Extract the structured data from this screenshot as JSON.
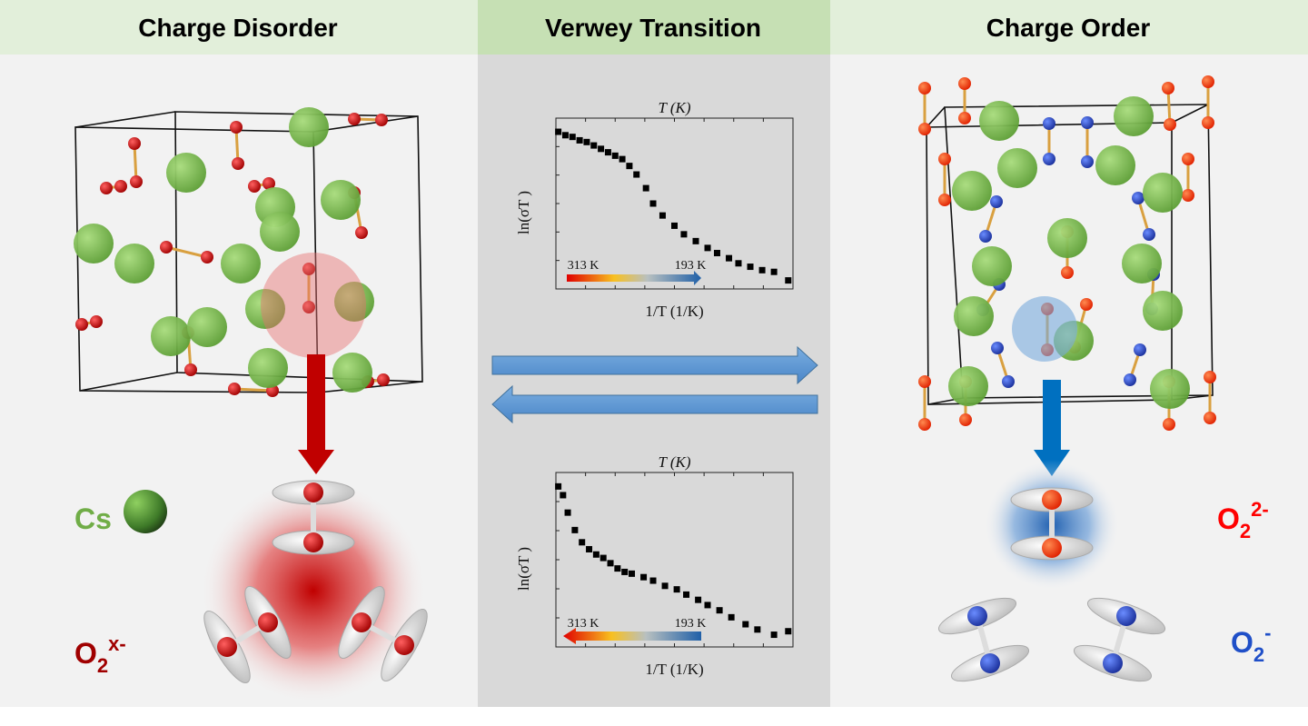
{
  "panels": [
    {
      "title": "Charge Disorder"
    },
    {
      "title": "Verwey Transition"
    },
    {
      "title": "Charge Order"
    }
  ],
  "legend": {
    "cs": "Cs",
    "o2_disorder": {
      "base": "O",
      "sub": "2",
      "sup": "x-"
    },
    "o2_peroxide": {
      "base": "O",
      "sub": "2",
      "sup": "2-"
    },
    "o2_superoxide": {
      "base": "O",
      "sub": "2",
      "sup": "-"
    }
  },
  "charts": [
    {
      "type": "scatter",
      "top_label": "T  (K)",
      "y_label": "ln(σT )",
      "x_label": "1/T  (1/K)",
      "colorbar": {
        "start": "313 K",
        "end": "193 K",
        "direction": "right"
      },
      "xlim": [
        0,
        1
      ],
      "ylim": [
        0,
        1
      ],
      "x": [
        0.01,
        0.04,
        0.07,
        0.1,
        0.13,
        0.16,
        0.19,
        0.22,
        0.25,
        0.28,
        0.31,
        0.34,
        0.38,
        0.41,
        0.45,
        0.5,
        0.54,
        0.59,
        0.64,
        0.68,
        0.73,
        0.77,
        0.82,
        0.87,
        0.92,
        0.98
      ],
      "y": [
        0.92,
        0.9,
        0.89,
        0.87,
        0.86,
        0.84,
        0.82,
        0.8,
        0.78,
        0.76,
        0.72,
        0.67,
        0.59,
        0.5,
        0.43,
        0.37,
        0.32,
        0.28,
        0.24,
        0.21,
        0.18,
        0.15,
        0.13,
        0.11,
        0.1,
        0.05
      ]
    },
    {
      "type": "scatter",
      "top_label": "T  (K)",
      "y_label": "ln(σT )",
      "x_label": "1/T  (1/K)",
      "colorbar": {
        "start": "313 K",
        "end": "193 K",
        "direction": "left"
      },
      "xlim": [
        0,
        1
      ],
      "ylim": [
        0,
        1
      ],
      "x": [
        0.01,
        0.03,
        0.05,
        0.08,
        0.11,
        0.14,
        0.17,
        0.2,
        0.23,
        0.26,
        0.29,
        0.32,
        0.37,
        0.41,
        0.46,
        0.51,
        0.55,
        0.6,
        0.64,
        0.69,
        0.74,
        0.8,
        0.85,
        0.92,
        0.98
      ],
      "y": [
        0.92,
        0.87,
        0.77,
        0.67,
        0.6,
        0.56,
        0.53,
        0.51,
        0.48,
        0.45,
        0.43,
        0.42,
        0.4,
        0.38,
        0.35,
        0.33,
        0.3,
        0.27,
        0.24,
        0.21,
        0.17,
        0.13,
        0.1,
        0.07,
        0.09
      ]
    }
  ]
}
